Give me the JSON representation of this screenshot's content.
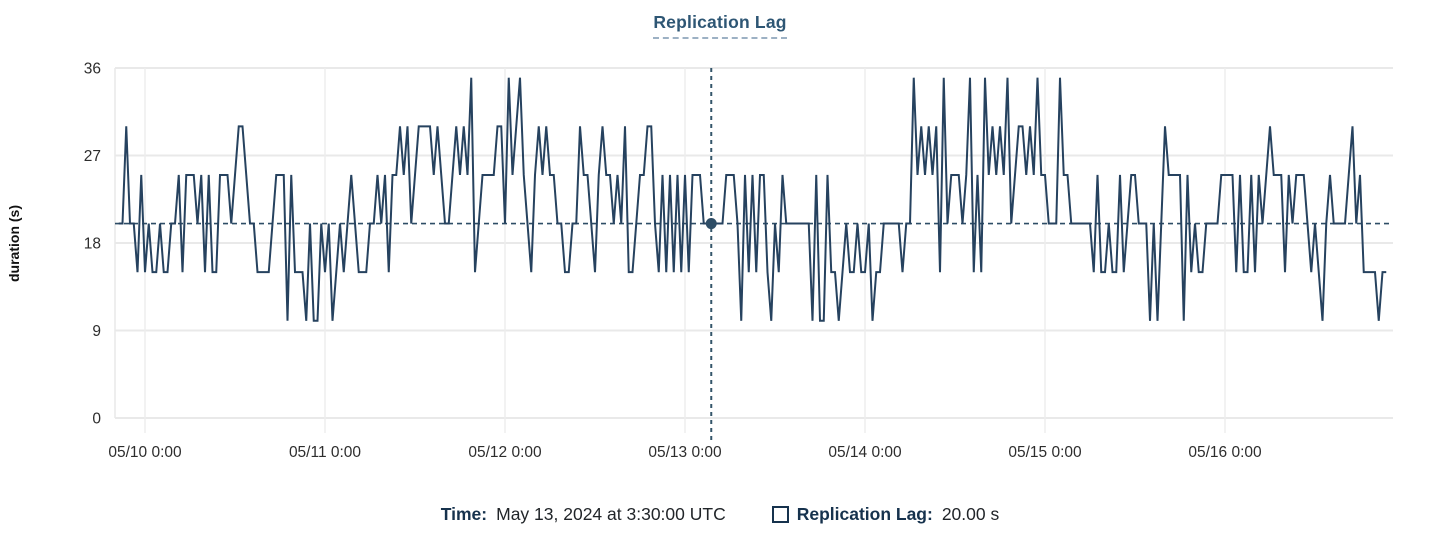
{
  "title": "Replication Lag",
  "tooltip": {
    "time_label": "Time:",
    "time_value": "May 13, 2024 at 3:30:00 UTC",
    "series_label": "Replication Lag:",
    "series_value": "20.00 s"
  },
  "colors": {
    "series_line": "#26425f",
    "reference_dash": "#2e4d66",
    "crosshair": "#34566a",
    "dot": "#2e4d66",
    "gridline": "#e9e9e9",
    "tick_text": "#2d2d2d",
    "title_text": "#2e5674",
    "legend_label": "#16324d"
  },
  "chart_data": {
    "type": "line",
    "title": "Replication Lag",
    "xlabel": "",
    "ylabel": "duration (s)",
    "ylim": [
      0,
      36
    ],
    "yticks": [
      0,
      9,
      18,
      27,
      36
    ],
    "xticks": [
      "05/10 0:00",
      "05/11 0:00",
      "05/12 0:00",
      "05/13 0:00",
      "05/14 0:00",
      "05/15 0:00",
      "05/16 0:00"
    ],
    "grid": true,
    "legend_position": "bottom",
    "points_per_day": 48,
    "first_tick_index": 7,
    "reference_line": {
      "value": 20,
      "style": "dashed"
    },
    "crosshair": {
      "index": 158,
      "value": 20,
      "time_label": "May 13, 2024 at 3:30:00 UTC",
      "value_label": "20.00 s"
    },
    "series": [
      {
        "name": "Replication Lag",
        "unit": "s",
        "values": [
          20,
          20,
          30,
          20,
          20,
          15,
          25,
          15,
          20,
          15,
          15,
          20,
          15,
          15,
          20,
          20,
          25,
          15,
          25,
          25,
          25,
          20,
          25,
          15,
          25,
          15,
          15,
          25,
          25,
          25,
          20,
          25,
          30,
          30,
          25,
          20,
          20,
          15,
          15,
          15,
          15,
          20,
          25,
          25,
          25,
          10,
          25,
          15,
          15,
          15,
          10,
          20,
          10,
          10,
          20,
          15,
          20,
          10,
          15,
          20,
          15,
          20,
          25,
          20,
          15,
          15,
          15,
          20,
          20,
          25,
          20,
          25,
          15,
          25,
          25,
          30,
          25,
          30,
          20,
          25,
          30,
          30,
          30,
          30,
          25,
          30,
          25,
          20,
          20,
          25,
          30,
          25,
          30,
          25,
          35,
          15,
          20,
          25,
          25,
          25,
          25,
          30,
          30,
          20,
          35,
          25,
          30,
          35,
          25,
          20,
          15,
          25,
          30,
          25,
          30,
          25,
          25,
          20,
          20,
          15,
          15,
          20,
          20,
          30,
          25,
          25,
          20,
          15,
          25,
          30,
          25,
          25,
          20,
          25,
          20,
          30,
          15,
          15,
          20,
          25,
          25,
          30,
          30,
          20,
          15,
          25,
          15,
          25,
          15,
          25,
          15,
          25,
          15,
          25,
          25,
          25,
          20,
          20,
          20,
          20,
          20,
          20,
          25,
          25,
          25,
          20,
          10,
          25,
          15,
          25,
          15,
          25,
          25,
          15,
          10,
          20,
          15,
          25,
          20,
          20,
          20,
          20,
          20,
          20,
          20,
          10,
          25,
          10,
          10,
          25,
          15,
          15,
          10,
          15,
          20,
          15,
          15,
          20,
          15,
          15,
          20,
          10,
          15,
          15,
          20,
          20,
          20,
          20,
          20,
          15,
          20,
          20,
          35,
          25,
          30,
          25,
          30,
          25,
          30,
          15,
          35,
          20,
          25,
          25,
          25,
          20,
          25,
          35,
          15,
          25,
          15,
          35,
          25,
          30,
          25,
          30,
          25,
          35,
          20,
          25,
          30,
          30,
          25,
          30,
          25,
          35,
          25,
          25,
          20,
          20,
          20,
          35,
          25,
          25,
          20,
          20,
          20,
          20,
          20,
          20,
          15,
          25,
          15,
          15,
          20,
          15,
          15,
          25,
          15,
          20,
          25,
          25,
          20,
          20,
          20,
          10,
          20,
          10,
          20,
          30,
          25,
          25,
          25,
          25,
          10,
          25,
          15,
          20,
          15,
          15,
          20,
          20,
          20,
          20,
          25,
          25,
          25,
          25,
          15,
          25,
          15,
          15,
          25,
          15,
          25,
          20,
          25,
          30,
          25,
          25,
          25,
          15,
          25,
          20,
          25,
          25,
          25,
          20,
          15,
          20,
          15,
          10,
          20,
          25,
          20,
          20,
          20,
          20,
          25,
          30,
          20,
          25,
          15,
          15,
          15,
          15,
          10,
          15,
          15
        ]
      }
    ]
  }
}
